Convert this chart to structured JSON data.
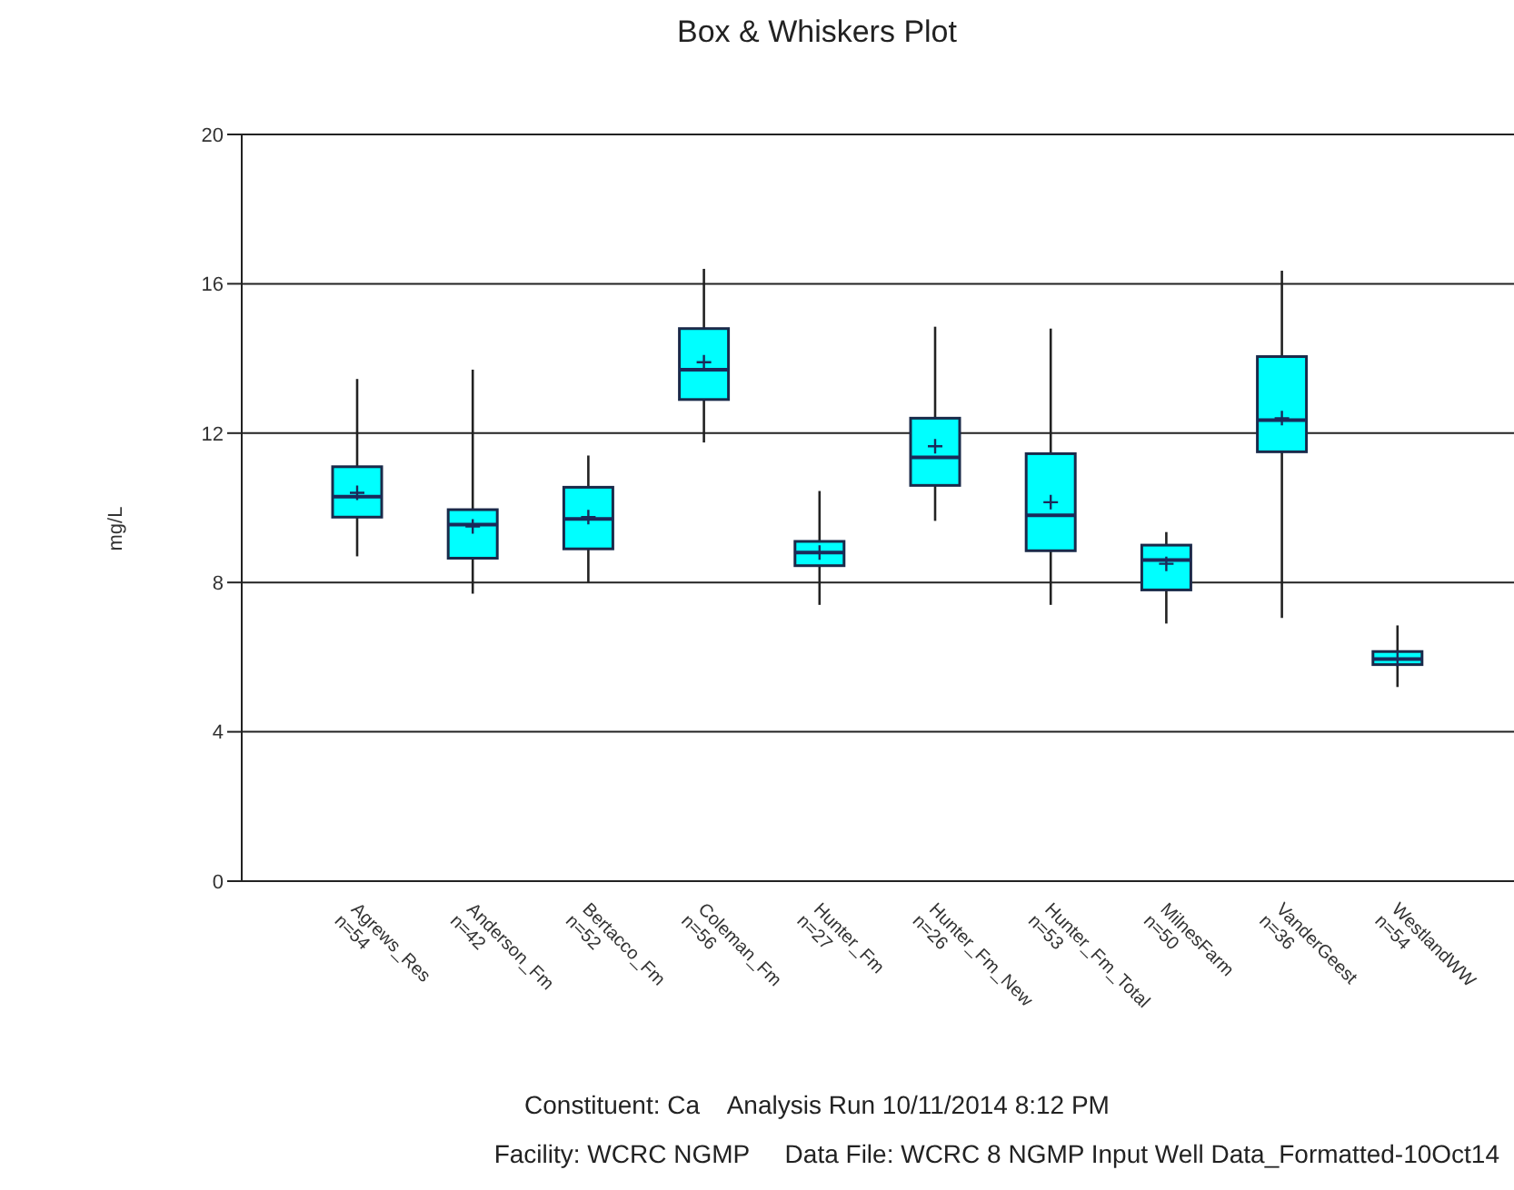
{
  "chart_data": {
    "type": "box",
    "title": "Box & Whiskers Plot",
    "ylabel": "mg/L",
    "categories": [
      "Agrews_Res\nn=54",
      "Anderson_Fm\nn=42",
      "Bertacco_Fm\nn=52",
      "Coleman_Fm\nn=56",
      "Hunter_Fm\nn=27",
      "Hunter_Fm_New\nn=26",
      "Hunter_Fm_Total\nn=53",
      "MilnesFarm\nn=50",
      "VanderGeest\nn=36",
      "WestlandWW\nn=54"
    ],
    "color": "#00ffff",
    "boxes": [
      {
        "low": 8.7,
        "q1": 9.75,
        "median": 10.3,
        "q3": 11.1,
        "high": 13.45,
        "mean": 10.4
      },
      {
        "low": 7.7,
        "q1": 8.65,
        "median": 9.55,
        "q3": 9.95,
        "high": 13.7,
        "mean": 9.5
      },
      {
        "low": 8.0,
        "q1": 8.9,
        "median": 9.7,
        "q3": 10.55,
        "high": 11.4,
        "mean": 9.75
      },
      {
        "low": 11.75,
        "q1": 12.9,
        "median": 13.7,
        "q3": 14.8,
        "high": 16.4,
        "mean": 13.9
      },
      {
        "low": 7.4,
        "q1": 8.45,
        "median": 8.8,
        "q3": 9.1,
        "high": 10.45,
        "mean": 8.8
      },
      {
        "low": 9.65,
        "q1": 10.6,
        "median": 11.35,
        "q3": 12.4,
        "high": 14.85,
        "mean": 11.65
      },
      {
        "low": 7.4,
        "q1": 8.85,
        "median": 9.8,
        "q3": 11.45,
        "high": 14.8,
        "mean": 10.15
      },
      {
        "low": 6.9,
        "q1": 7.8,
        "median": 8.6,
        "q3": 9.0,
        "high": 9.35,
        "mean": 8.5
      },
      {
        "low": 7.05,
        "q1": 11.5,
        "median": 12.35,
        "q3": 14.05,
        "high": 16.35,
        "mean": 12.4
      },
      {
        "low": 5.2,
        "q1": 5.8,
        "median": 5.95,
        "q3": 6.15,
        "high": 6.85,
        "mean": 5.95
      }
    ],
    "ylim": [
      0,
      20
    ],
    "yticks": [
      0,
      4,
      8,
      12,
      16,
      20
    ],
    "grid": "y",
    "annotations": [
      "Constituent: Ca    Analysis Run 10/11/2014 8:12 PM",
      "Facility: WCRC NGMP     Data File: WCRC 8 NGMP Input Well Data_Formatted-10Oct14"
    ]
  }
}
